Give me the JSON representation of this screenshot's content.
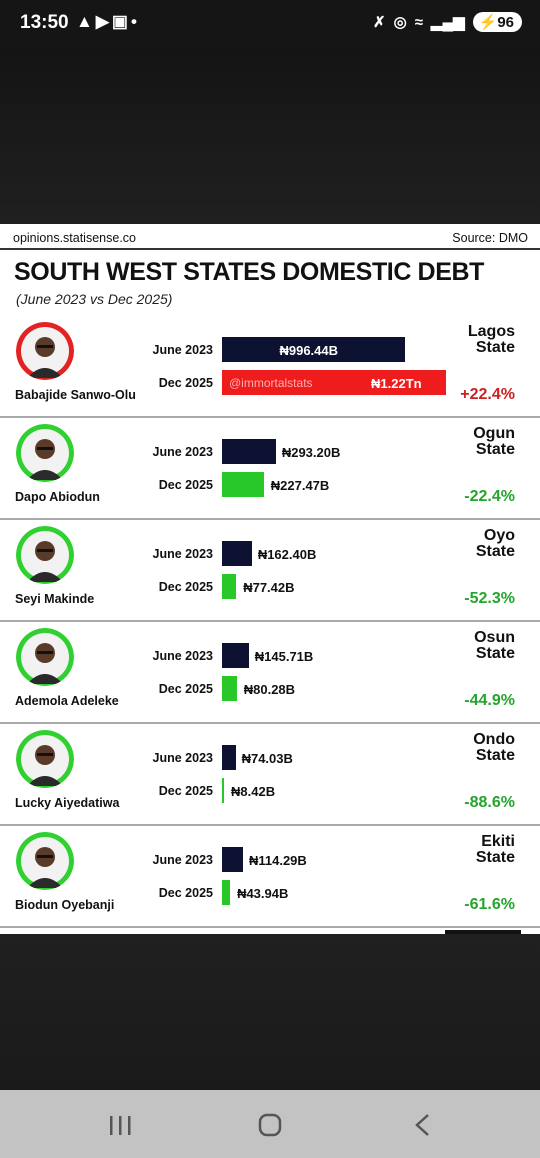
{
  "status_bar": {
    "time": "13:50",
    "left_icons": [
      "warning-icon",
      "youtube-icon",
      "screenshot-icon",
      "dot-icon"
    ],
    "right_icons": [
      "mute-icon",
      "hotspot-icon",
      "wifi-icon",
      "signal-icon"
    ],
    "battery": "96"
  },
  "header": {
    "site": "opinions.statisense.co",
    "source": "Source: DMO",
    "title": "SOUTH WEST STATES DOMESTIC DEBT",
    "subtitle": "(June 2023 vs Dec 2025)"
  },
  "colors": {
    "june_bar": "#0d1232",
    "dec_bar_increase": "#ee1c1c",
    "dec_bar_decrease": "#28c828",
    "increase_text": "#cc1f1f",
    "decrease_text": "#24a52b",
    "avatar_ring_lagos": "#e52222",
    "avatar_ring": "#2fd02f"
  },
  "chart_data": {
    "type": "bar",
    "title": "SOUTH WEST STATES DOMESTIC DEBT",
    "subtitle": "(June 2023 vs Dec 2025)",
    "unit": "₦ billions",
    "series_labels": [
      "June 2023",
      "Dec 2025"
    ],
    "watermark": "@immortalstats",
    "rows": [
      {
        "governor": "Babajide Sanwo-Olu",
        "state": "Lagos",
        "state_word": "State",
        "june_value": 996.44,
        "june_label": "₦996.44B",
        "dec_value": 1220,
        "dec_label": "₦1.22Tn",
        "change": "+22.4%",
        "direction": "up"
      },
      {
        "governor": "Dapo Abiodun",
        "state": "Ogun",
        "state_word": "State",
        "june_value": 293.2,
        "june_label": "₦293.20B",
        "dec_value": 227.47,
        "dec_label": "₦227.47B",
        "change": "-22.4%",
        "direction": "down"
      },
      {
        "governor": "Seyi Makinde",
        "state": "Oyo",
        "state_word": "State",
        "june_value": 162.4,
        "june_label": "₦162.40B",
        "dec_value": 77.42,
        "dec_label": "₦77.42B",
        "change": "-52.3%",
        "direction": "down"
      },
      {
        "governor": "Ademola Adeleke",
        "state": "Osun",
        "state_word": "State",
        "june_value": 145.71,
        "june_label": "₦145.71B",
        "dec_value": 80.28,
        "dec_label": "₦80.28B",
        "change": "-44.9%",
        "direction": "down"
      },
      {
        "governor": "Lucky Aiyedatiwa",
        "state": "Ondo",
        "state_word": "State",
        "june_value": 74.03,
        "june_label": "₦74.03B",
        "dec_value": 8.42,
        "dec_label": "₦8.42B",
        "change": "-88.6%",
        "direction": "down"
      },
      {
        "governor": "Biodun Oyebanji",
        "state": "Ekiti",
        "state_word": "State",
        "june_value": 114.29,
        "june_label": "₦114.29B",
        "dec_value": 43.94,
        "dec_label": "₦43.94B",
        "change": "-61.6%",
        "direction": "down"
      }
    ]
  },
  "nav_bar": {
    "buttons": [
      "recent-apps-icon",
      "home-icon",
      "back-icon"
    ]
  }
}
